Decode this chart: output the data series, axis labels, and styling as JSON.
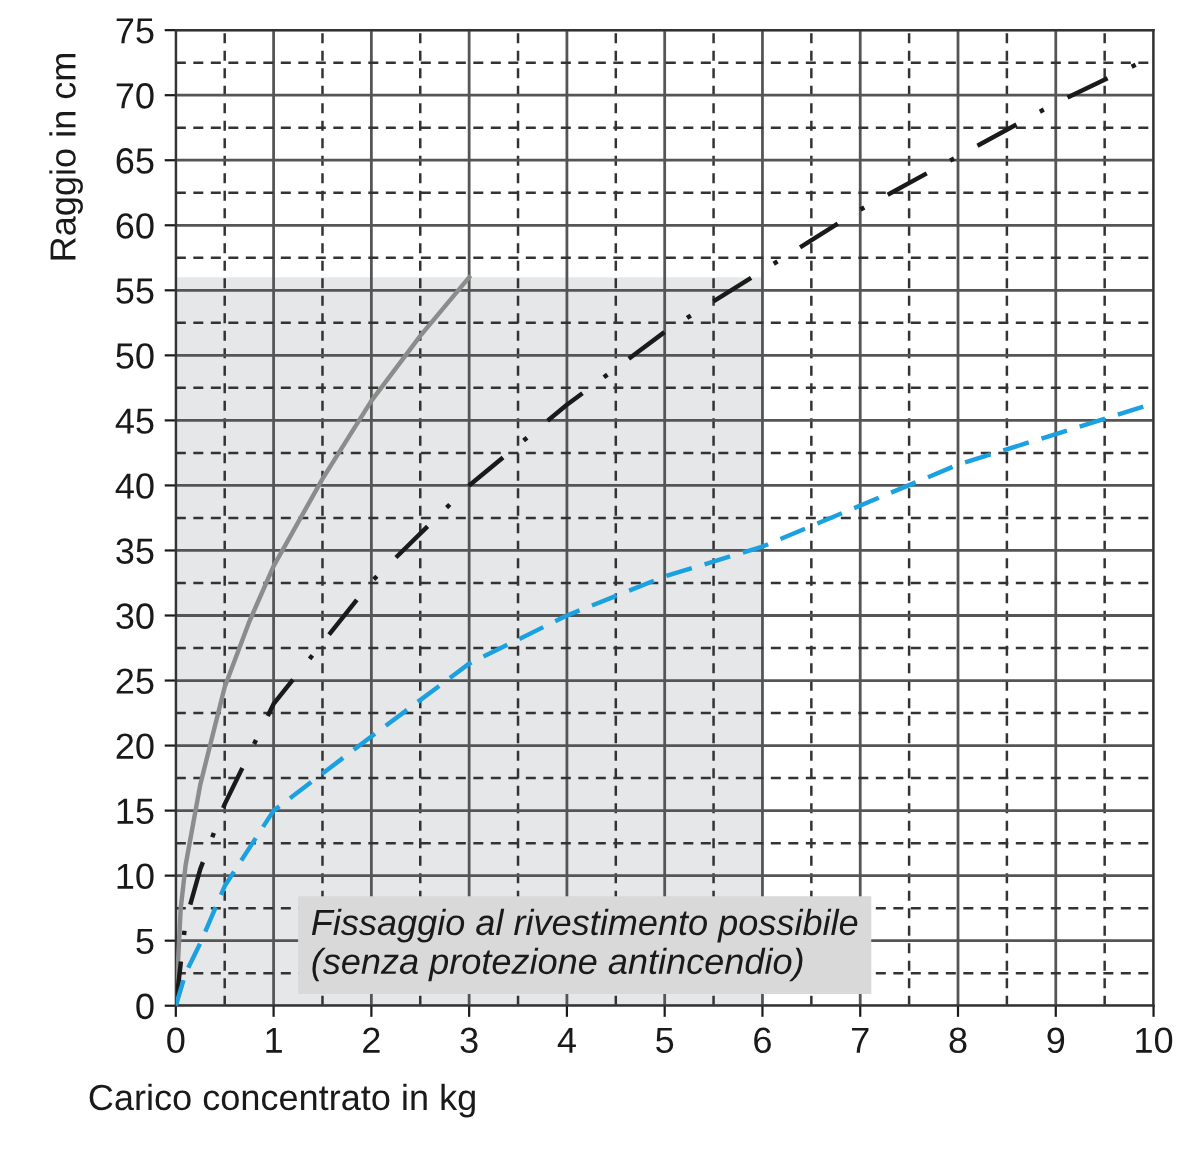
{
  "chart_data": {
    "type": "line",
    "xlabel": "Carico concentrato in kg",
    "ylabel": "Raggio in cm",
    "xlim": [
      0,
      10
    ],
    "ylim": [
      0,
      75
    ],
    "xticks": [
      0,
      1,
      2,
      3,
      4,
      5,
      6,
      7,
      8,
      9,
      10
    ],
    "yticks": [
      0,
      5,
      10,
      15,
      20,
      25,
      30,
      35,
      40,
      45,
      50,
      55,
      60,
      65,
      70,
      75
    ],
    "grid": true,
    "marker": "none",
    "annotations": [
      "Fissaggio al rivestimento possibile\n(senza protezione antincendio)"
    ],
    "series": [
      {
        "type": "area",
        "color": "#e6e7e8",
        "x": [
          0,
          6
        ],
        "values": [
          56,
          56
        ]
      },
      {
        "color": "#8c8c8c",
        "line_style": "solid",
        "x": [
          0,
          0.05,
          0.1,
          0.25,
          0.5,
          0.75,
          1,
          1.5,
          2,
          2.5,
          3
        ],
        "values": [
          0,
          7.5,
          10.8,
          17,
          24.5,
          29.5,
          33.8,
          40.5,
          46.5,
          51.5,
          56
        ]
      },
      {
        "color": "#1a1a1a",
        "line_style": "dashdot",
        "x": [
          0,
          0.1,
          0.25,
          0.5,
          1,
          2,
          3,
          4,
          5,
          6,
          7,
          8,
          9,
          10
        ],
        "values": [
          0,
          6.5,
          10.5,
          15.5,
          23.2,
          32.6,
          40,
          46.2,
          51.8,
          56.5,
          61.2,
          65.3,
          69.4,
          73
        ]
      },
      {
        "color": "#1ba1e2",
        "line_style": "dashed",
        "x": [
          0,
          0.1,
          0.25,
          0.5,
          1,
          2,
          3,
          4,
          5,
          6,
          8,
          10
        ],
        "values": [
          0,
          2.5,
          4.8,
          9.2,
          15,
          20.7,
          26.3,
          30,
          33,
          35.3,
          41.6,
          46.3
        ]
      }
    ]
  }
}
